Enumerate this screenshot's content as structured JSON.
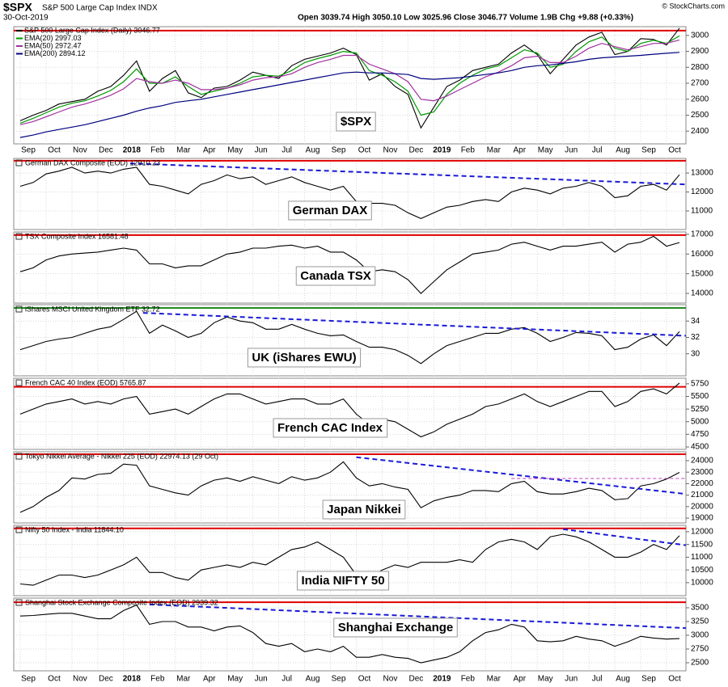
{
  "header": {
    "symbol": "$SPX",
    "name": "S&P 500 Large Cap Index INDX",
    "date": "30-Oct-2019",
    "quote": "Open 3039.74 High 3050.10 Low 3025.96 Close 3046.77 Volume 1.9B Chg +9.88 (+0.33%)",
    "credit": "© StockCharts.com"
  },
  "chart_data": {
    "type": "line",
    "categories": [
      "Sep",
      null,
      "Oct",
      null,
      "Nov",
      null,
      "Dec",
      null,
      "2018",
      null,
      "Feb",
      null,
      "Mar",
      null,
      "Apr",
      null,
      "May",
      null,
      "Jun",
      null,
      "Jul",
      null,
      "Aug",
      null,
      "Sep",
      null,
      "Oct",
      null,
      "Nov",
      null,
      "Dec",
      null,
      "2019",
      null,
      "Feb",
      null,
      "Mar",
      null,
      "Apr",
      null,
      "May",
      null,
      "Jun",
      null,
      "Jul",
      null,
      "Aug",
      null,
      "Sep",
      null,
      "Oct",
      null
    ],
    "panels": [
      {
        "title": null,
        "label": "$SPX",
        "ylim": [
          2320,
          3055
        ],
        "yticks": [
          2400,
          2500,
          2600,
          2700,
          2800,
          2900,
          3000
        ],
        "hline": {
          "value": 3030,
          "color": "#e00000"
        },
        "trends": [],
        "series": [
          {
            "name": "S&P 500 Large Cap Index (Daily) 3046.77",
            "color": "#000000",
            "values": [
              2465,
              2500,
              2530,
              2570,
              2585,
              2600,
              2650,
              2680,
              2750,
              2840,
              2650,
              2730,
              2780,
              2640,
              2610,
              2670,
              2680,
              2720,
              2770,
              2750,
              2730,
              2810,
              2850,
              2870,
              2890,
              2920,
              2880,
              2720,
              2760,
              2680,
              2630,
              2420,
              2550,
              2680,
              2720,
              2780,
              2800,
              2820,
              2890,
              2940,
              2880,
              2760,
              2850,
              2940,
              2990,
              3020,
              2880,
              2900,
              2980,
              2975,
              2940,
              3046
            ]
          },
          {
            "name": "EMA(20) 2997.03",
            "color": "#009900",
            "values": [
              2450,
              2480,
              2515,
              2550,
              2575,
              2590,
              2620,
              2655,
              2710,
              2790,
              2700,
              2700,
              2740,
              2680,
              2630,
              2650,
              2670,
              2700,
              2740,
              2750,
              2745,
              2780,
              2830,
              2855,
              2875,
              2900,
              2890,
              2780,
              2750,
              2710,
              2650,
              2500,
              2520,
              2630,
              2700,
              2750,
              2790,
              2810,
              2860,
              2910,
              2890,
              2800,
              2820,
              2900,
              2960,
              2990,
              2920,
              2900,
              2950,
              2970,
              2950,
              2997
            ]
          },
          {
            "name": "EMA(50) 2972.47",
            "color": "#a030a0",
            "values": [
              2440,
              2460,
              2490,
              2520,
              2550,
              2570,
              2595,
              2625,
              2665,
              2730,
              2710,
              2700,
              2720,
              2700,
              2660,
              2660,
              2670,
              2690,
              2720,
              2735,
              2740,
              2760,
              2800,
              2830,
              2850,
              2875,
              2875,
              2820,
              2790,
              2760,
              2710,
              2600,
              2590,
              2620,
              2660,
              2700,
              2740,
              2770,
              2810,
              2860,
              2870,
              2830,
              2830,
              2870,
              2920,
              2950,
              2930,
              2910,
              2930,
              2950,
              2950,
              2972
            ]
          },
          {
            "name": "EMA(200) 2894.12",
            "color": "#000080",
            "values": [
              2360,
              2375,
              2395,
              2410,
              2425,
              2440,
              2460,
              2480,
              2500,
              2525,
              2545,
              2560,
              2580,
              2590,
              2600,
              2615,
              2630,
              2645,
              2660,
              2675,
              2690,
              2705,
              2720,
              2735,
              2750,
              2765,
              2770,
              2765,
              2765,
              2760,
              2755,
              2730,
              2725,
              2730,
              2735,
              2745,
              2755,
              2765,
              2780,
              2800,
              2810,
              2815,
              2825,
              2835,
              2850,
              2860,
              2865,
              2870,
              2875,
              2882,
              2888,
              2894
            ]
          }
        ]
      },
      {
        "title": "German DAX Composite (EOD) 12910.23",
        "label": "German DAX",
        "ylim": [
          10020,
          13770
        ],
        "yticks": [
          11000,
          12000,
          13000
        ],
        "hline": {
          "value": 13650,
          "color": "#e00000"
        },
        "trends": [
          {
            "x": [
              8.5,
              51.5
            ],
            "values": [
              13510,
              12400
            ],
            "color": "#1a1ad6"
          }
        ],
        "series": [
          {
            "color": "#000000",
            "values": [
              12300,
              12500,
              12950,
              13100,
              13300,
              13000,
              13100,
              13000,
              13200,
              13300,
              12400,
              12300,
              12100,
              11900,
              12400,
              12600,
              12900,
              12700,
              12800,
              12400,
              12600,
              12800,
              12500,
              12300,
              12100,
              12300,
              11500,
              11400,
              11400,
              11300,
              10900,
              10600,
              10900,
              11200,
              11300,
              11500,
              11600,
              11500,
              12000,
              12200,
              12100,
              11900,
              12200,
              12300,
              12500,
              12300,
              11700,
              11800,
              12300,
              12400,
              12100,
              12910
            ]
          }
        ]
      },
      {
        "title": "TSX Composite Index 16581.48",
        "label": "Canada TSX",
        "ylim": [
          13510,
          17120
        ],
        "yticks": [
          14000,
          15000,
          16000,
          17000
        ],
        "hline": {
          "value": 16960,
          "color": "#e00000"
        },
        "trends": [],
        "series": [
          {
            "color": "#000000",
            "values": [
              15100,
              15300,
              15700,
              15900,
              16000,
              16050,
              16100,
              16200,
              16300,
              16200,
              15500,
              15500,
              15300,
              15400,
              15400,
              15700,
              16000,
              16100,
              16300,
              16300,
              16400,
              16450,
              16300,
              16400,
              16100,
              16100,
              15700,
              15100,
              15200,
              15100,
              14700,
              14000,
              14600,
              15200,
              15600,
              16000,
              16100,
              16200,
              16500,
              16600,
              16400,
              16200,
              16400,
              16400,
              16500,
              16600,
              16100,
              16500,
              16600,
              16900,
              16400,
              16581
            ]
          }
        ]
      },
      {
        "title": "iShares MSCI United Kingdom ETF 32.72",
        "label": "UK (iShares EWU)",
        "ylim": [
          27.3,
          36
        ],
        "yticks": [
          30,
          32,
          34
        ],
        "hline": {
          "value": 35.6,
          "color": "#228b22"
        },
        "trends": [
          {
            "x": [
              9.5,
              51.5
            ],
            "values": [
              35,
              32.2
            ],
            "color": "#1a1ad6"
          }
        ],
        "series": [
          {
            "color": "#000000",
            "values": [
              30.5,
              31.0,
              31.5,
              31.8,
              32.0,
              32.5,
              33.0,
              33.3,
              34.2,
              35.2,
              32.5,
              33.5,
              32.8,
              32.0,
              32.5,
              33.8,
              34.5,
              34.0,
              33.8,
              33.0,
              33.0,
              33.6,
              33.0,
              32.5,
              32.2,
              32.3,
              31.5,
              30.8,
              30.8,
              30.5,
              29.8,
              28.8,
              30.0,
              31.0,
              31.5,
              32.0,
              32.5,
              32.5,
              33.0,
              33.2,
              32.5,
              31.5,
              32.0,
              32.6,
              32.5,
              32.2,
              30.5,
              30.8,
              31.8,
              32.3,
              31.0,
              32.72
            ]
          }
        ]
      },
      {
        "title": "French CAC 40 Index (EOD) 5765.87",
        "label": "French CAC Index",
        "ylim": [
          4452,
          5860
        ],
        "yticks": [
          4500,
          4750,
          5000,
          5250,
          5500,
          5750
        ],
        "hline": {
          "value": 5690,
          "color": "#e00000"
        },
        "trends": [],
        "series": [
          {
            "color": "#000000",
            "values": [
              5150,
              5250,
              5350,
              5400,
              5450,
              5350,
              5400,
              5350,
              5450,
              5500,
              5150,
              5200,
              5250,
              5150,
              5300,
              5450,
              5550,
              5550,
              5450,
              5350,
              5400,
              5450,
              5450,
              5350,
              5350,
              5450,
              5150,
              4950,
              5050,
              5000,
              4850,
              4700,
              4800,
              4950,
              5050,
              5150,
              5300,
              5350,
              5450,
              5550,
              5400,
              5300,
              5400,
              5500,
              5600,
              5600,
              5300,
              5400,
              5600,
              5650,
              5550,
              5766
            ]
          }
        ]
      },
      {
        "title": "Tokyo Nikkei Average - Nikkei 225 (EOD) 22974.13 (29 Oct)",
        "label": "Japan Nikkei",
        "ylim": [
          18580,
          24770
        ],
        "yticks": [
          19000,
          20000,
          21000,
          22000,
          23000,
          24000
        ],
        "hline": {
          "value": 24560,
          "color": "#e00000"
        },
        "trends": [
          {
            "x": [
              26,
              51.5
            ],
            "values": [
              24300,
              21100
            ],
            "color": "#1a1ad6"
          },
          {
            "x": [
              38,
              51.5
            ],
            "values": [
              22450,
              22450
            ],
            "color": "#c040c0"
          }
        ],
        "series": [
          {
            "color": "#000000",
            "values": [
              19500,
              20000,
              20800,
              21400,
              22500,
              22400,
              22800,
              22900,
              23700,
              23600,
              21800,
              21500,
              21200,
              21000,
              21800,
              22300,
              22500,
              22200,
              22600,
              22300,
              22000,
              22600,
              22300,
              22500,
              23000,
              23900,
              22500,
              21800,
              22000,
              21700,
              21500,
              19900,
              20500,
              20800,
              21000,
              21400,
              21400,
              21300,
              22000,
              22200,
              21300,
              21100,
              21100,
              21300,
              21600,
              21400,
              20600,
              20700,
              21800,
              22000,
              22400,
              22974
            ]
          }
        ]
      },
      {
        "title": "Nifty 50 Index - India 11844.10",
        "label": "India NIFTY 50",
        "ylim": [
          9490,
          12250
        ],
        "yticks": [
          10000,
          10500,
          11000,
          11500,
          12000
        ],
        "hline": {
          "value": 12130,
          "color": "#e00000"
        },
        "trends": [
          {
            "x": [
              42,
              51.5
            ],
            "values": [
              12100,
              11470
            ],
            "color": "#1a1ad6"
          }
        ],
        "series": [
          {
            "color": "#000000",
            "values": [
              9950,
              9900,
              10100,
              10300,
              10300,
              10200,
              10300,
              10500,
              10700,
              11000,
              10400,
              10400,
              10200,
              10100,
              10500,
              10600,
              10700,
              10600,
              10800,
              10700,
              11000,
              11300,
              11400,
              11600,
              11300,
              11000,
              10300,
              10200,
              10500,
              10700,
              10600,
              10800,
              10800,
              10800,
              10900,
              10800,
              11300,
              11600,
              11700,
              11600,
              11300,
              11800,
              11900,
              11800,
              11600,
              11300,
              11000,
              11000,
              11200,
              11500,
              11300,
              11844
            ]
          }
        ]
      },
      {
        "title": "Shanghai Stock Exchange Composite Index (EOD) 2939.32",
        "label": "Shanghai Exchange",
        "ylim": [
          2353,
          3676
        ],
        "yticks": [
          2500,
          2750,
          3000,
          3250,
          3500
        ],
        "hline": {
          "value": 3600,
          "color": "#e00000"
        },
        "trends": [
          {
            "x": [
              10,
              51.5
            ],
            "values": [
              3560,
              3130
            ],
            "color": "#1a1ad6"
          }
        ],
        "series": [
          {
            "color": "#000000",
            "values": [
              3350,
              3360,
              3380,
              3400,
              3400,
              3350,
              3300,
              3300,
              3450,
              3550,
              3200,
              3250,
              3250,
              3150,
              3150,
              3080,
              3150,
              3170,
              3050,
              2850,
              2800,
              2850,
              2700,
              2750,
              2700,
              2800,
              2600,
              2600,
              2650,
              2600,
              2580,
              2500,
              2550,
              2600,
              2700,
              2900,
              3050,
              3100,
              3200,
              3150,
              2900,
              2880,
              2900,
              2980,
              2930,
              2900,
              2800,
              2880,
              2980,
              2950,
              2930,
              2939
            ]
          }
        ]
      }
    ]
  }
}
